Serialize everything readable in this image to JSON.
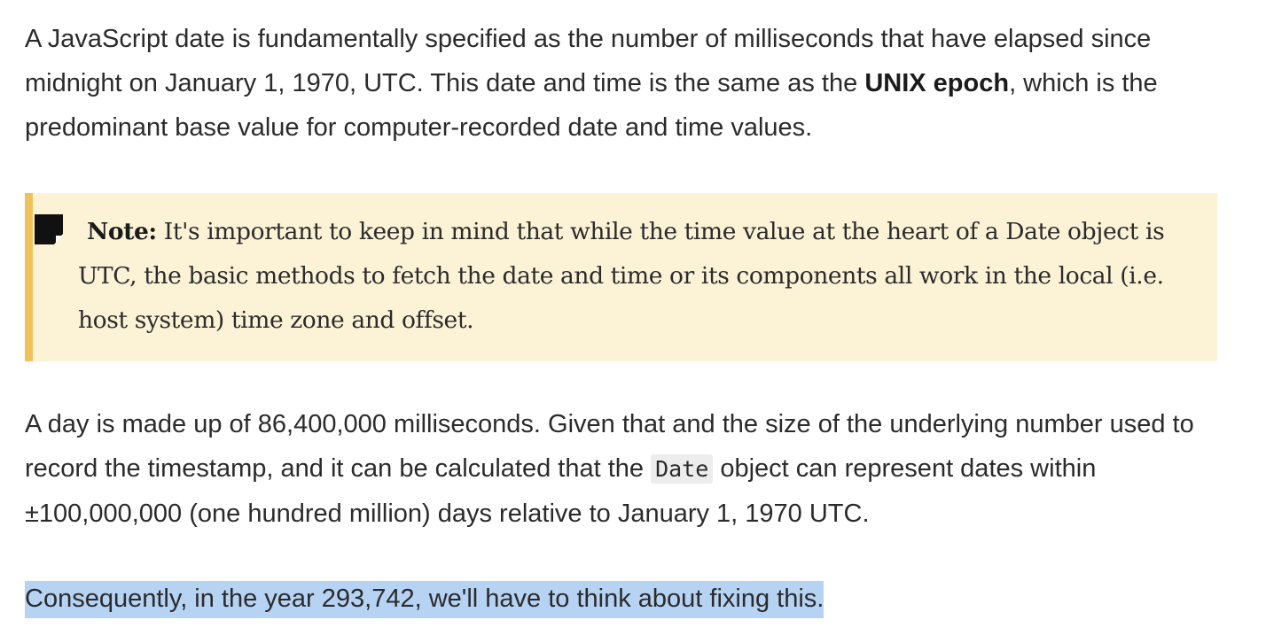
{
  "paragraph_1": {
    "text_before": "A JavaScript date is fundamentally specified as the number of milliseconds that have elapsed since midnight on January 1, 1970, UTC. This date and time is the same as the ",
    "strong": "UNIX epoch",
    "text_after": ", which is the predominant base value for computer-recorded date and time values."
  },
  "note": {
    "icon": "sticky-note-icon",
    "label": "Note:",
    "text": " It's important to keep in mind that while the time value at the heart of a Date object is UTC, the basic methods to fetch the date and time or its components all work in the local (i.e. host system) time zone and offset.",
    "background_color": "#fcf2d6",
    "border_color": "#f0c15a"
  },
  "paragraph_2": {
    "text_before": "A day is made up of 86,400,000 milliseconds. Given that and the size of the underlying number used to record the timestamp, and it can be calculated that the ",
    "code": "Date",
    "text_after": " object can represent dates within ±100,000,000 (one hundred million) days relative to January 1, 1970 UTC."
  },
  "paragraph_3": {
    "text": "Consequently, in the year 293,742, we'll have to think about fixing this.",
    "selection_color": "#b6d3f4"
  }
}
